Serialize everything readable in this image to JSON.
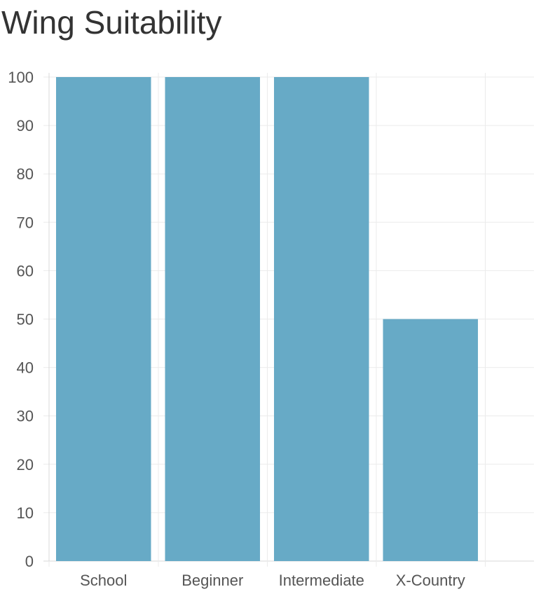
{
  "chart_data": {
    "type": "bar",
    "title": "Wing Suitability",
    "categories": [
      "School",
      "Beginner",
      "Intermediate",
      "X-Country"
    ],
    "values": [
      100,
      100,
      100,
      50
    ],
    "ylim": [
      0,
      100
    ],
    "yticks": [
      0,
      10,
      20,
      30,
      40,
      50,
      60,
      70,
      80,
      90,
      100
    ],
    "xlabel": "",
    "ylabel": "",
    "grid": true,
    "colors": {
      "bar": "#67aac6",
      "grid": "#ebebeb",
      "axis": "#d8d8d8",
      "text": "#555555"
    }
  }
}
